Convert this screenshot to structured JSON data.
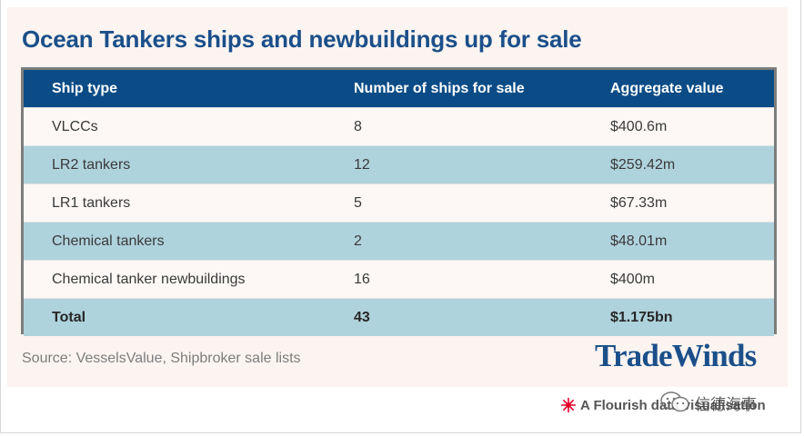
{
  "title": "Ocean Tankers ships and newbuildings up for sale",
  "table": {
    "headers": [
      "Ship type",
      "Number of ships for sale",
      "Aggregate value"
    ],
    "rows": [
      [
        "VLCCs",
        "8",
        "$400.6m"
      ],
      [
        "LR2 tankers",
        "12",
        "$259.42m"
      ],
      [
        "LR1 tankers",
        "5",
        "$67.33m"
      ],
      [
        "Chemical tankers",
        "2",
        "$48.01m"
      ],
      [
        "Chemical tanker newbuildings",
        "16",
        "$400m"
      ],
      [
        "Total",
        "43",
        "$1.175bn"
      ]
    ]
  },
  "source": "Source: VesselsValue, Shipbroker sale lists",
  "logo": "TradeWinds",
  "credit": "A Flourish data visualisation",
  "watermark": "信德海事",
  "colors": {
    "title": "#1b4f8a",
    "header_bg": "#0b4c86",
    "row_blue": "#afd3dd",
    "row_light": "#fdf8f6",
    "card_bg": "#fcf4f1",
    "flourish_red": "#e4002b"
  }
}
